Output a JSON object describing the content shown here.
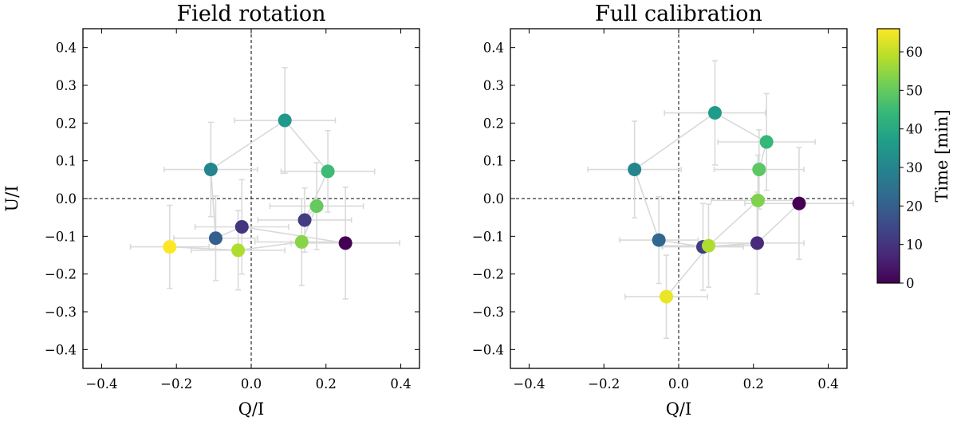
{
  "chart_data": [
    {
      "type": "scatter",
      "title": "Field rotation",
      "xlabel": "Q/I",
      "ylabel": "U/I",
      "xlim": [
        -0.45,
        0.45
      ],
      "ylim": [
        -0.45,
        0.45
      ],
      "xticks": [
        -0.4,
        -0.2,
        0.0,
        0.2,
        0.4
      ],
      "xtick_labels": [
        "−0.4",
        "−0.2",
        "0.0",
        "0.2",
        "0.4"
      ],
      "yticks": [
        -0.4,
        -0.3,
        -0.2,
        -0.1,
        0.0,
        0.1,
        0.2,
        0.3,
        0.4
      ],
      "ytick_labels": [
        "−0.4",
        "−0.3",
        "−0.2",
        "−0.1",
        "0.0",
        "0.1",
        "0.2",
        "0.3",
        "0.4"
      ],
      "connected": true,
      "zero_lines": true,
      "points": [
        {
          "time": 0,
          "q": 0.252,
          "u": -0.118,
          "qerr": 0.145,
          "uerr": 0.148
        },
        {
          "time": 10,
          "q": -0.025,
          "u": -0.075,
          "qerr": 0.125,
          "uerr": 0.125
        },
        {
          "time": 20,
          "q": -0.095,
          "u": -0.105,
          "qerr": 0.112,
          "uerr": 0.112
        },
        {
          "time": 30,
          "q": -0.108,
          "u": 0.077,
          "qerr": 0.125,
          "uerr": 0.125
        },
        {
          "time": 35,
          "q": 0.09,
          "u": 0.207,
          "qerr": 0.135,
          "uerr": 0.14
        },
        {
          "time": 45,
          "q": 0.205,
          "u": 0.072,
          "qerr": 0.125,
          "uerr": 0.108
        },
        {
          "time": 12,
          "q": 0.143,
          "u": -0.057,
          "qerr": 0.125,
          "uerr": 0.085
        },
        {
          "time": 50,
          "q": 0.175,
          "u": -0.02,
          "qerr": 0.125,
          "uerr": 0.115
        },
        {
          "time": 54,
          "q": 0.135,
          "u": -0.115,
          "qerr": 0.125,
          "uerr": 0.115
        },
        {
          "time": 58,
          "q": -0.035,
          "u": -0.137,
          "qerr": 0.125,
          "uerr": 0.105
        },
        {
          "time": 66,
          "q": -0.218,
          "u": -0.128,
          "qerr": 0.105,
          "uerr": 0.11
        }
      ]
    },
    {
      "type": "scatter",
      "title": "Full calibration",
      "xlabel": "Q/I",
      "ylabel": "",
      "xlim": [
        -0.45,
        0.45
      ],
      "ylim": [
        -0.45,
        0.45
      ],
      "xticks": [
        -0.4,
        -0.2,
        0.0,
        0.2,
        0.4
      ],
      "xtick_labels": [
        "−0.4",
        "−0.2",
        "0.0",
        "0.2",
        "0.4"
      ],
      "yticks": [
        -0.4,
        -0.3,
        -0.2,
        -0.1,
        0.0,
        0.1,
        0.2,
        0.3,
        0.4
      ],
      "ytick_labels": [
        "−0.4",
        "−0.3",
        "−0.2",
        "−0.1",
        "0.0",
        "0.1",
        "0.2",
        "0.3",
        "0.4"
      ],
      "connected": true,
      "zero_lines": true,
      "points": [
        {
          "time": 0,
          "q": 0.322,
          "u": -0.013,
          "qerr": 0.145,
          "uerr": 0.148
        },
        {
          "time": 8,
          "q": 0.21,
          "u": -0.118,
          "qerr": 0.125,
          "uerr": 0.135
        },
        {
          "time": 12,
          "q": 0.065,
          "u": -0.128,
          "qerr": 0.108,
          "uerr": 0.115
        },
        {
          "time": 22,
          "q": -0.053,
          "u": -0.11,
          "qerr": 0.105,
          "uerr": 0.115
        },
        {
          "time": 30,
          "q": -0.118,
          "u": 0.077,
          "qerr": 0.125,
          "uerr": 0.128
        },
        {
          "time": 36,
          "q": 0.097,
          "u": 0.227,
          "qerr": 0.135,
          "uerr": 0.138
        },
        {
          "time": 44,
          "q": 0.235,
          "u": 0.15,
          "qerr": 0.13,
          "uerr": 0.128
        },
        {
          "time": 49,
          "q": 0.215,
          "u": 0.077,
          "qerr": 0.12,
          "uerr": 0.105
        },
        {
          "time": 53,
          "q": 0.212,
          "u": -0.005,
          "qerr": 0.125,
          "uerr": 0.12
        },
        {
          "time": 58,
          "q": 0.08,
          "u": -0.125,
          "qerr": 0.125,
          "uerr": 0.11
        },
        {
          "time": 64,
          "q": -0.033,
          "u": -0.26,
          "qerr": 0.11,
          "uerr": 0.11
        }
      ]
    }
  ],
  "colorbar": {
    "label": "Time [min]",
    "colormap": "viridis",
    "range": [
      0,
      66
    ],
    "ticks": [
      0,
      10,
      20,
      30,
      40,
      50,
      60
    ],
    "tick_labels": [
      "0",
      "10",
      "20",
      "30",
      "40",
      "50",
      "60"
    ]
  },
  "colors": {
    "errorbar": "#dadada",
    "connector": "#d9d9d9",
    "viridis_stops": [
      "#440154",
      "#482878",
      "#3e4989",
      "#31688e",
      "#26828e",
      "#1f9e89",
      "#35b779",
      "#6ece58",
      "#b5de2b",
      "#fde725"
    ]
  }
}
